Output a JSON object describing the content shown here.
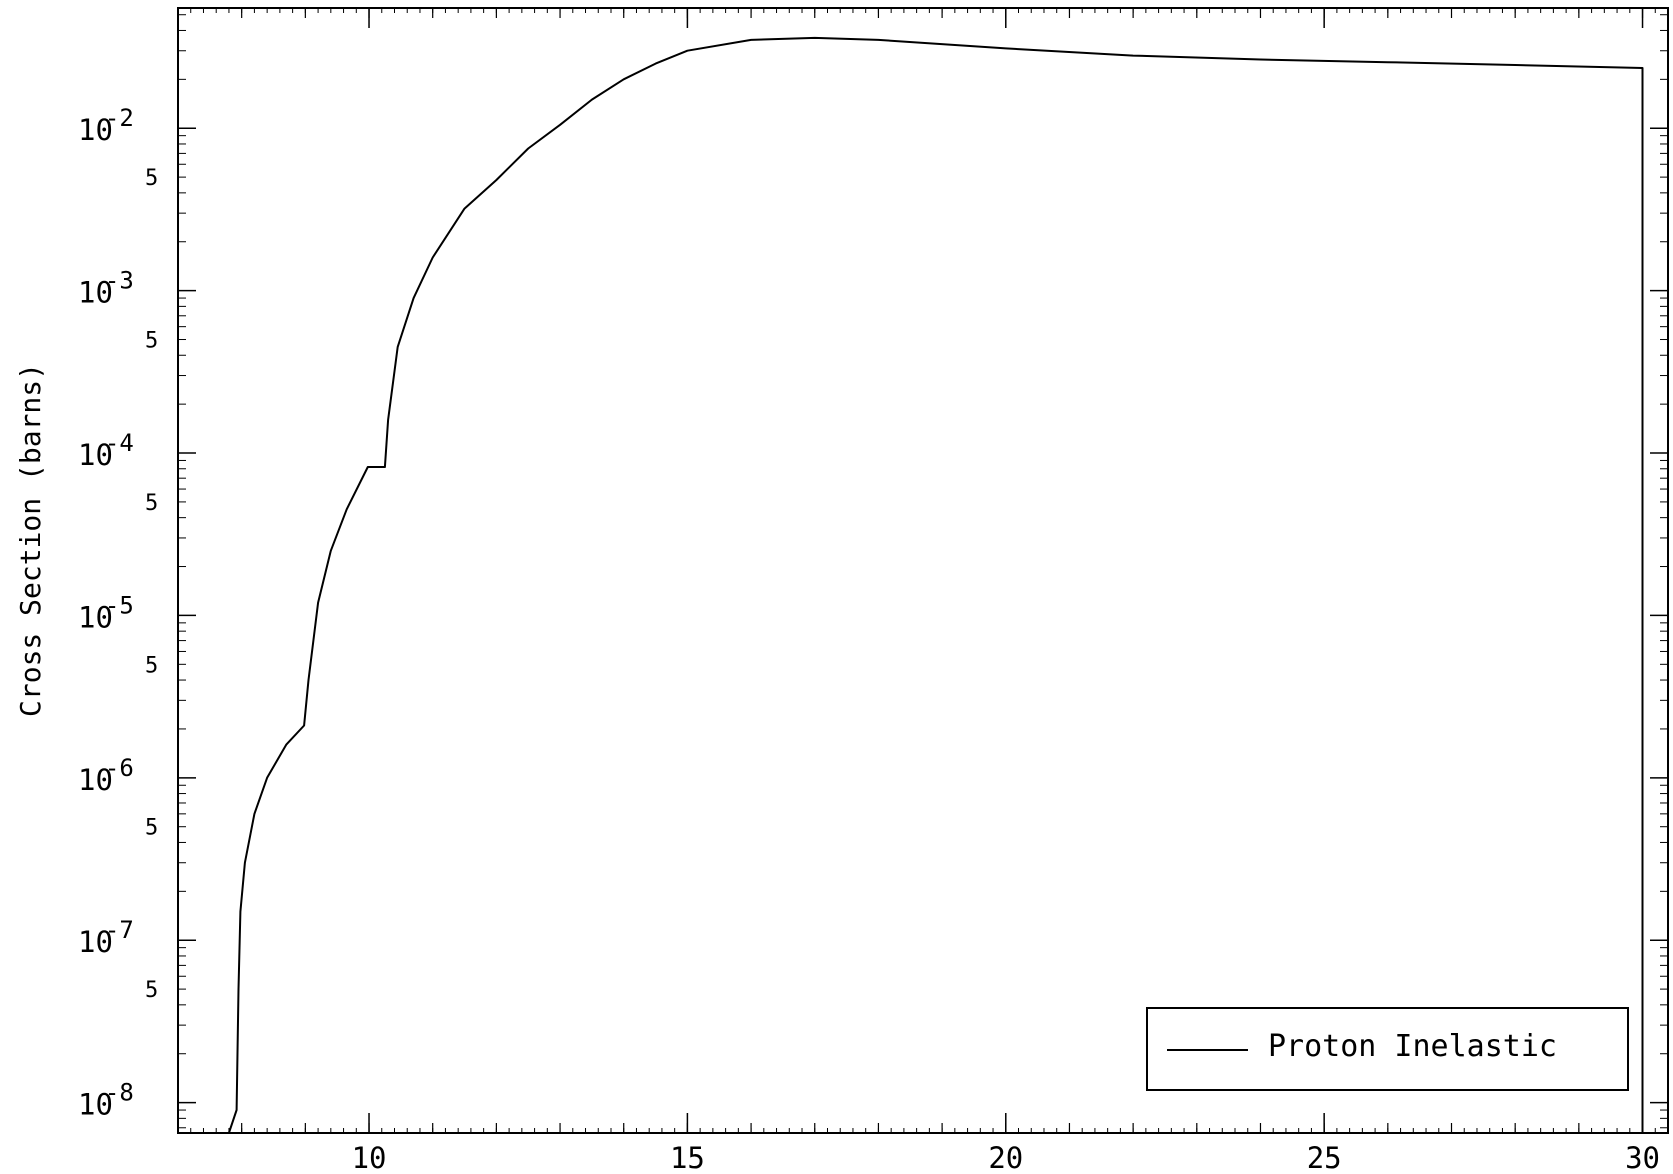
{
  "chart_data": {
    "type": "line",
    "title": "",
    "xlabel": "",
    "ylabel": "Cross Section (barns)",
    "yscale": "log",
    "xlim": [
      7,
      30.4
    ],
    "ylim": [
      6.5e-09,
      0.055
    ],
    "grid": false,
    "legend_position": "bottom-right",
    "x_ticks": [
      {
        "value": 10,
        "label": "10"
      },
      {
        "value": 15,
        "label": "15"
      },
      {
        "value": 20,
        "label": "20"
      },
      {
        "value": 25,
        "label": "25"
      },
      {
        "value": 30,
        "label": "30"
      }
    ],
    "y_ticks": [
      {
        "value": 1e-08,
        "base": "10",
        "exponent": "-8"
      },
      {
        "value": 1e-07,
        "base": "10",
        "exponent": "-7"
      },
      {
        "value": 1e-06,
        "base": "10",
        "exponent": "-6"
      },
      {
        "value": 1e-05,
        "base": "10",
        "exponent": "-5"
      },
      {
        "value": 0.0001,
        "base": "10",
        "exponent": "-4"
      },
      {
        "value": 0.001,
        "base": "10",
        "exponent": "-3"
      },
      {
        "value": 0.01,
        "base": "10",
        "exponent": "-2"
      }
    ],
    "y_minor_labels": [
      {
        "value": 5e-08,
        "label": "5"
      },
      {
        "value": 5e-07,
        "label": "5"
      },
      {
        "value": 5e-06,
        "label": "5"
      },
      {
        "value": 5e-05,
        "label": "5"
      },
      {
        "value": 0.0005,
        "label": "5"
      },
      {
        "value": 0.005,
        "label": "5"
      }
    ],
    "series": [
      {
        "name": "Proton Inelastic",
        "color": "#000000",
        "points": [
          [
            7.8,
            6.5e-09
          ],
          [
            7.92,
            9e-09
          ],
          [
            7.95,
            5e-08
          ],
          [
            7.98,
            1.5e-07
          ],
          [
            8.05,
            3e-07
          ],
          [
            8.2,
            6e-07
          ],
          [
            8.4,
            1e-06
          ],
          [
            8.7,
            1.6e-06
          ],
          [
            8.98,
            2.1e-06
          ],
          [
            9.05,
            4e-06
          ],
          [
            9.2,
            1.2e-05
          ],
          [
            9.4,
            2.5e-05
          ],
          [
            9.65,
            4.5e-05
          ],
          [
            9.98,
            8.2e-05
          ],
          [
            10.25,
            8.2e-05
          ],
          [
            10.3,
            0.00016
          ],
          [
            10.45,
            0.00045
          ],
          [
            10.7,
            0.0009
          ],
          [
            11.0,
            0.0016
          ],
          [
            11.5,
            0.0032
          ],
          [
            12.0,
            0.0048
          ],
          [
            12.5,
            0.0075
          ],
          [
            13.0,
            0.0105
          ],
          [
            13.5,
            0.015
          ],
          [
            14.0,
            0.02
          ],
          [
            14.5,
            0.025
          ],
          [
            15.0,
            0.03
          ],
          [
            16.0,
            0.035
          ],
          [
            17.0,
            0.036
          ],
          [
            18.0,
            0.035
          ],
          [
            20.0,
            0.031
          ],
          [
            22.0,
            0.028
          ],
          [
            24.0,
            0.0265
          ],
          [
            26.0,
            0.0255
          ],
          [
            28.0,
            0.0245
          ],
          [
            30.0,
            0.0235
          ]
        ]
      }
    ]
  }
}
